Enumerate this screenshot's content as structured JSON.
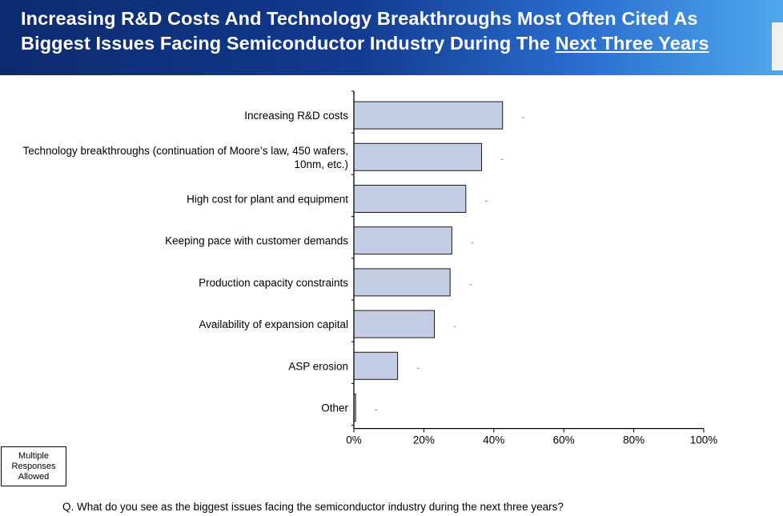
{
  "header": {
    "title_line1": "Increasing R&D Costs And Technology Breakthroughs Most Often Cited As",
    "title_line2_prefix": "Biggest Issues Facing Semiconductor Industry During The ",
    "title_line2_emphasis": "Next Three Years"
  },
  "note": {
    "line1": "Multiple",
    "line2": "Responses",
    "line3": "Allowed"
  },
  "question": "Q. What do you see as the biggest issues facing the semiconductor industry during the next three years?",
  "colors": {
    "bar_fill": "#c3cde4",
    "bar_stroke": "#1a1a1a",
    "header_dark": "#0d2a6e",
    "header_light": "#4fa8ec"
  },
  "chart_data": {
    "type": "bar",
    "orientation": "horizontal",
    "categories": [
      [
        "Increasing R&D costs"
      ],
      [
        "Technology breakthroughs (continuation of Moore’s law, 450 wafers,",
        "10nm, etc.)"
      ],
      [
        "High cost for plant and equipment"
      ],
      [
        "Keeping pace with customer demands"
      ],
      [
        "Production capacity constraints"
      ],
      [
        "Availability of expansion capital"
      ],
      [
        "ASP erosion"
      ],
      [
        "Other"
      ]
    ],
    "values": [
      42.5,
      36.5,
      32,
      28,
      27.5,
      23,
      12.5,
      0.5
    ],
    "xlim": [
      0,
      100
    ],
    "xticks": [
      0,
      20,
      40,
      60,
      80,
      100
    ],
    "xtick_labels": [
      "0%",
      "20%",
      "40%",
      "60%",
      "80%",
      "100%"
    ],
    "grid": false,
    "legend": "none"
  }
}
